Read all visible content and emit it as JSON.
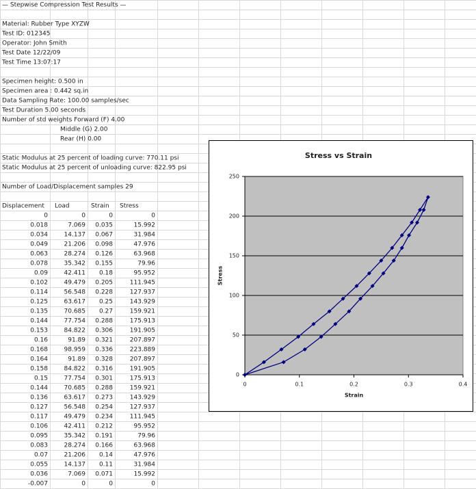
{
  "sheet": {
    "info": [
      "— Stepwise Compression Test Results —",
      null,
      "Material: Rubber Type XYZW",
      "Test ID: 012345",
      "Operator: John Smith",
      "Test Date 12/22/09",
      "Test Time 13:07:17",
      null,
      "Specimen height: 0.500 in",
      "Specimen area : 0.442 sq.in",
      "Data Sampling Rate: 100.00 samples/sec",
      "Test Duration 5.00 seconds",
      "Number of std weights Forward (F) 4.00",
      "Middle (G) 2.00",
      "Rear (H) 0.00",
      null,
      "Static Modulus at 25 percent of loading curve: 770.11 psi",
      "Static Modulus at 25 percent of unloading curve: 822.95 psi",
      null,
      "Number of Load/Displacement samples 29"
    ],
    "table": {
      "header": [
        "Displacement",
        "Load",
        "Strain",
        "Stress"
      ],
      "rows": [
        [
          0,
          0,
          0,
          0
        ],
        [
          0.018,
          7.069,
          0.035,
          15.992
        ],
        [
          0.034,
          14.137,
          0.067,
          31.984
        ],
        [
          0.049,
          21.206,
          0.098,
          47.976
        ],
        [
          0.063,
          28.274,
          0.126,
          63.968
        ],
        [
          0.078,
          35.342,
          0.155,
          79.96
        ],
        [
          0.09,
          42.411,
          0.18,
          95.952
        ],
        [
          0.102,
          49.479,
          0.205,
          111.945
        ],
        [
          0.114,
          56.548,
          0.228,
          127.937
        ],
        [
          0.125,
          63.617,
          0.25,
          143.929
        ],
        [
          0.135,
          70.685,
          0.27,
          159.921
        ],
        [
          0.144,
          77.754,
          0.288,
          175.913
        ],
        [
          0.153,
          84.822,
          0.306,
          191.905
        ],
        [
          0.16,
          91.89,
          0.321,
          207.897
        ],
        [
          0.168,
          98.959,
          0.336,
          223.889
        ],
        [
          0.164,
          91.89,
          0.328,
          207.897
        ],
        [
          0.158,
          84.822,
          0.316,
          191.905
        ],
        [
          0.15,
          77.754,
          0.301,
          175.913
        ],
        [
          0.144,
          70.685,
          0.288,
          159.921
        ],
        [
          0.136,
          63.617,
          0.273,
          143.929
        ],
        [
          0.127,
          56.548,
          0.254,
          127.937
        ],
        [
          0.117,
          49.479,
          0.234,
          111.945
        ],
        [
          0.106,
          42.411,
          0.212,
          95.952
        ],
        [
          0.095,
          35.342,
          0.191,
          79.96
        ],
        [
          0.083,
          28.274,
          0.166,
          63.968
        ],
        [
          0.07,
          21.206,
          0.14,
          47.976
        ],
        [
          0.055,
          14.137,
          0.11,
          31.984
        ],
        [
          0.036,
          7.069,
          0.071,
          15.992
        ],
        [
          -0.007,
          0,
          0,
          0
        ]
      ]
    }
  },
  "chart_data": {
    "type": "line",
    "title": "Stress vs Strain",
    "x_label": "Strain",
    "y_label": "Stress",
    "x": [
      0,
      0.035,
      0.067,
      0.098,
      0.126,
      0.155,
      0.18,
      0.205,
      0.228,
      0.25,
      0.27,
      0.288,
      0.306,
      0.321,
      0.336,
      0.328,
      0.316,
      0.301,
      0.288,
      0.273,
      0.254,
      0.234,
      0.212,
      0.191,
      0.166,
      0.14,
      0.11,
      0.071,
      0
    ],
    "series": [
      {
        "color": "#000080",
        "values": [
          0,
          15.992,
          31.984,
          47.976,
          63.968,
          79.96,
          95.952,
          111.945,
          127.937,
          143.929,
          159.921,
          175.913,
          191.905,
          207.897,
          223.889,
          207.897,
          191.905,
          175.913,
          159.921,
          143.929,
          127.937,
          111.945,
          95.952,
          79.96,
          63.968,
          47.976,
          31.984,
          15.992,
          0
        ]
      }
    ],
    "xlim": [
      0,
      0.4
    ],
    "xticks": [
      0,
      0.1,
      0.2,
      0.3,
      0.4
    ],
    "ylim": [
      0,
      250
    ],
    "yticks": [
      0,
      50,
      100,
      150,
      200,
      250
    ],
    "grid": true
  }
}
